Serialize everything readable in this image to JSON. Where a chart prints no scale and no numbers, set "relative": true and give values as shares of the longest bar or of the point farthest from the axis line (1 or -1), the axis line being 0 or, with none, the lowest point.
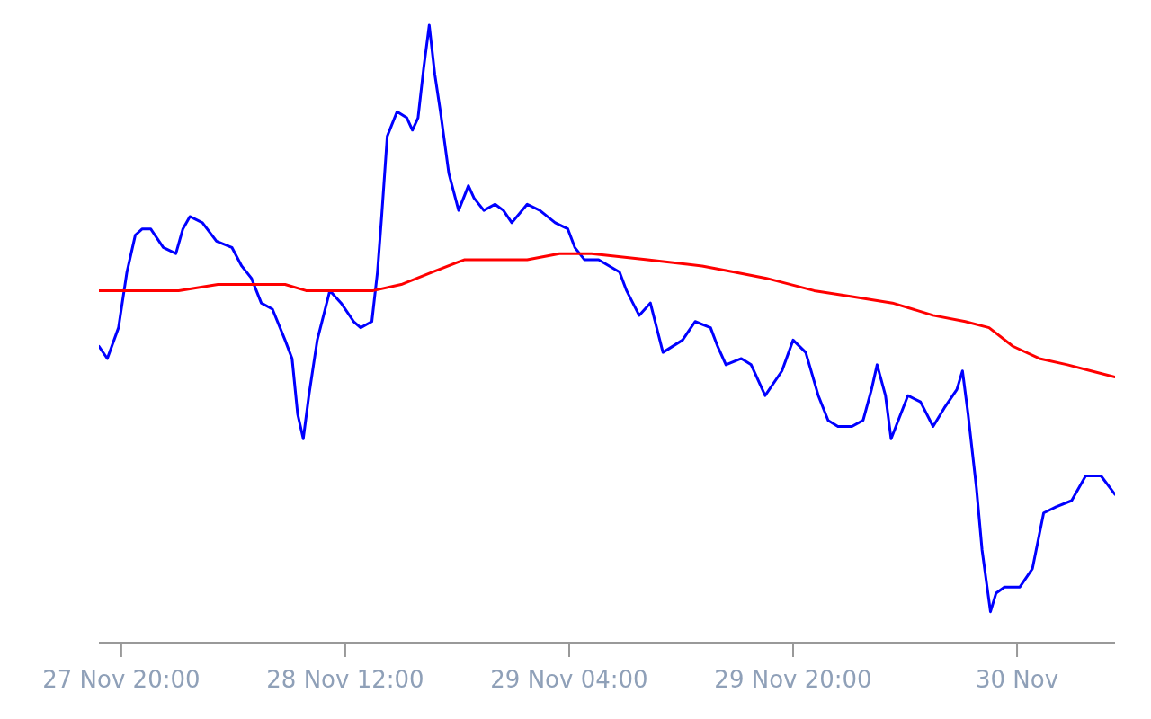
{
  "chart_data": {
    "type": "line",
    "relative": true,
    "xlim": [
      "--11-27T18:24",
      "--11-30T19:00"
    ],
    "xticks": [
      {
        "value": "--11-27T20:00",
        "label": "27 Nov 20:00"
      },
      {
        "value": "--11-28T12:00",
        "label": "28 Nov 12:00"
      },
      {
        "value": "--11-29T04:00",
        "label": "29 Nov 04:00"
      },
      {
        "value": "--11-29T20:00",
        "label": "29 Nov 20:00"
      },
      {
        "value": "--11-30T12:00",
        "label": "30 Nov"
      }
    ],
    "grid": false,
    "marker": "none",
    "line_style": "solid",
    "series": [
      {
        "color": "#0000ff",
        "x": [
          "--11-27T18:24",
          "--11-27T19:00",
          "--11-27T19:48",
          "--11-27T20:24",
          "--11-27T21:00",
          "--11-27T21:30",
          "--11-27T22:06",
          "--11-27T23:00",
          "--11-27T23:54",
          "--11-28T00:24",
          "--11-28T00:54",
          "--11-28T01:48",
          "--11-28T02:48",
          "--11-28T03:54",
          "--11-28T04:36",
          "--11-28T05:18",
          "--11-28T06:00",
          "--11-28T06:48",
          "--11-28T07:42",
          "--11-28T08:12",
          "--11-28T08:36",
          "--11-28T09:00",
          "--11-28T09:24",
          "--11-28T10:00",
          "--11-28T10:54",
          "--11-28T11:42",
          "--11-28T12:36",
          "--11-28T13:06",
          "--11-28T13:54",
          "--11-28T14:18",
          "--11-28T14:36",
          "--11-28T15:00",
          "--11-28T15:42",
          "--11-28T16:24",
          "--11-28T16:48",
          "--11-28T17:12",
          "--11-28T17:36",
          "--11-28T18:00",
          "--11-28T18:24",
          "--11-28T18:48",
          "--11-28T19:24",
          "--11-28T20:06",
          "--11-28T20:48",
          "--11-28T21:12",
          "--11-28T21:54",
          "--11-28T22:42",
          "--11-28T23:18",
          "--11-28T23:54",
          "--11-29T01:00",
          "--11-29T01:54",
          "--11-29T03:00",
          "--11-29T03:54",
          "--11-29T04:24",
          "--11-29T05:06",
          "--11-29T06:06",
          "--11-29T07:36",
          "--11-29T08:06",
          "--11-29T09:00",
          "--11-29T09:48",
          "--11-29T10:42",
          "--11-29T12:06",
          "--11-29T13:00",
          "--11-29T14:06",
          "--11-29T14:36",
          "--11-29T15:12",
          "--11-29T16:18",
          "--11-29T17:00",
          "--11-29T18:00",
          "--11-29T19:12",
          "--11-29T20:00",
          "--11-29T20:54",
          "--11-29T21:48",
          "--11-29T22:30",
          "--11-29T23:12",
          "--11-30T00:12",
          "--11-30T01:00",
          "--11-30T01:36",
          "--11-30T02:00",
          "--11-30T02:36",
          "--11-30T03:00",
          "--11-30T04:12",
          "--11-30T05:06",
          "--11-30T06:00",
          "--11-30T06:48",
          "--11-30T07:42",
          "--11-30T08:06",
          "--11-30T08:30",
          "--11-30T09:06",
          "--11-30T09:30",
          "--11-30T10:06",
          "--11-30T10:30",
          "--11-30T11:06",
          "--11-30T12:12",
          "--11-30T13:06",
          "--11-30T13:54",
          "--11-30T14:48",
          "--11-30T15:54",
          "--11-30T16:54",
          "--11-30T18:00",
          "--11-30T19:00"
        ],
        "values": [
          0.48,
          0.46,
          0.51,
          0.6,
          0.66,
          0.67,
          0.67,
          0.64,
          0.63,
          0.67,
          0.69,
          0.68,
          0.65,
          0.64,
          0.61,
          0.59,
          0.55,
          0.54,
          0.49,
          0.46,
          0.37,
          0.33,
          0.4,
          0.49,
          0.57,
          0.55,
          0.52,
          0.51,
          0.52,
          0.6,
          0.69,
          0.82,
          0.86,
          0.85,
          0.83,
          0.85,
          0.93,
          1,
          0.92,
          0.86,
          0.76,
          0.7,
          0.74,
          0.72,
          0.7,
          0.71,
          0.7,
          0.68,
          0.71,
          0.7,
          0.68,
          0.67,
          0.64,
          0.62,
          0.62,
          0.6,
          0.57,
          0.53,
          0.55,
          0.47,
          0.49,
          0.52,
          0.51,
          0.48,
          0.45,
          0.46,
          0.45,
          0.4,
          0.44,
          0.49,
          0.47,
          0.4,
          0.36,
          0.35,
          0.35,
          0.36,
          0.41,
          0.45,
          0.4,
          0.33,
          0.4,
          0.39,
          0.35,
          0.38,
          0.41,
          0.44,
          0.37,
          0.25,
          0.15,
          0.05,
          0.08,
          0.09,
          0.09,
          0.12,
          0.21,
          0.22,
          0.23,
          0.27,
          0.27,
          0.24
        ]
      },
      {
        "color": "#ff0000",
        "x": [
          "--11-27T18:24",
          "--11-27T20:42",
          "--11-28T00:06",
          "--11-28T02:54",
          "--11-28T05:48",
          "--11-28T07:42",
          "--11-28T09:12",
          "--11-28T11:24",
          "--11-28T14:00",
          "--11-28T16:00",
          "--11-28T18:12",
          "--11-28T20:30",
          "--11-28T22:48",
          "--11-29T01:00",
          "--11-29T03:18",
          "--11-29T05:36",
          "--11-29T09:36",
          "--11-29T13:30",
          "--11-29T15:48",
          "--11-29T18:06",
          "--11-29T21:30",
          "--11-30T00:18",
          "--11-30T03:06",
          "--11-30T06:00",
          "--11-30T08:18",
          "--11-30T10:00",
          "--11-30T11:42",
          "--11-30T13:36",
          "--11-30T15:36",
          "--11-30T17:18",
          "--11-30T19:00"
        ],
        "values": [
          0.57,
          0.57,
          0.57,
          0.58,
          0.58,
          0.58,
          0.57,
          0.57,
          0.57,
          0.58,
          0.6,
          0.62,
          0.62,
          0.62,
          0.63,
          0.63,
          0.62,
          0.61,
          0.6,
          0.59,
          0.57,
          0.56,
          0.55,
          0.53,
          0.52,
          0.51,
          0.48,
          0.46,
          0.45,
          0.44,
          0.43
        ]
      }
    ]
  }
}
